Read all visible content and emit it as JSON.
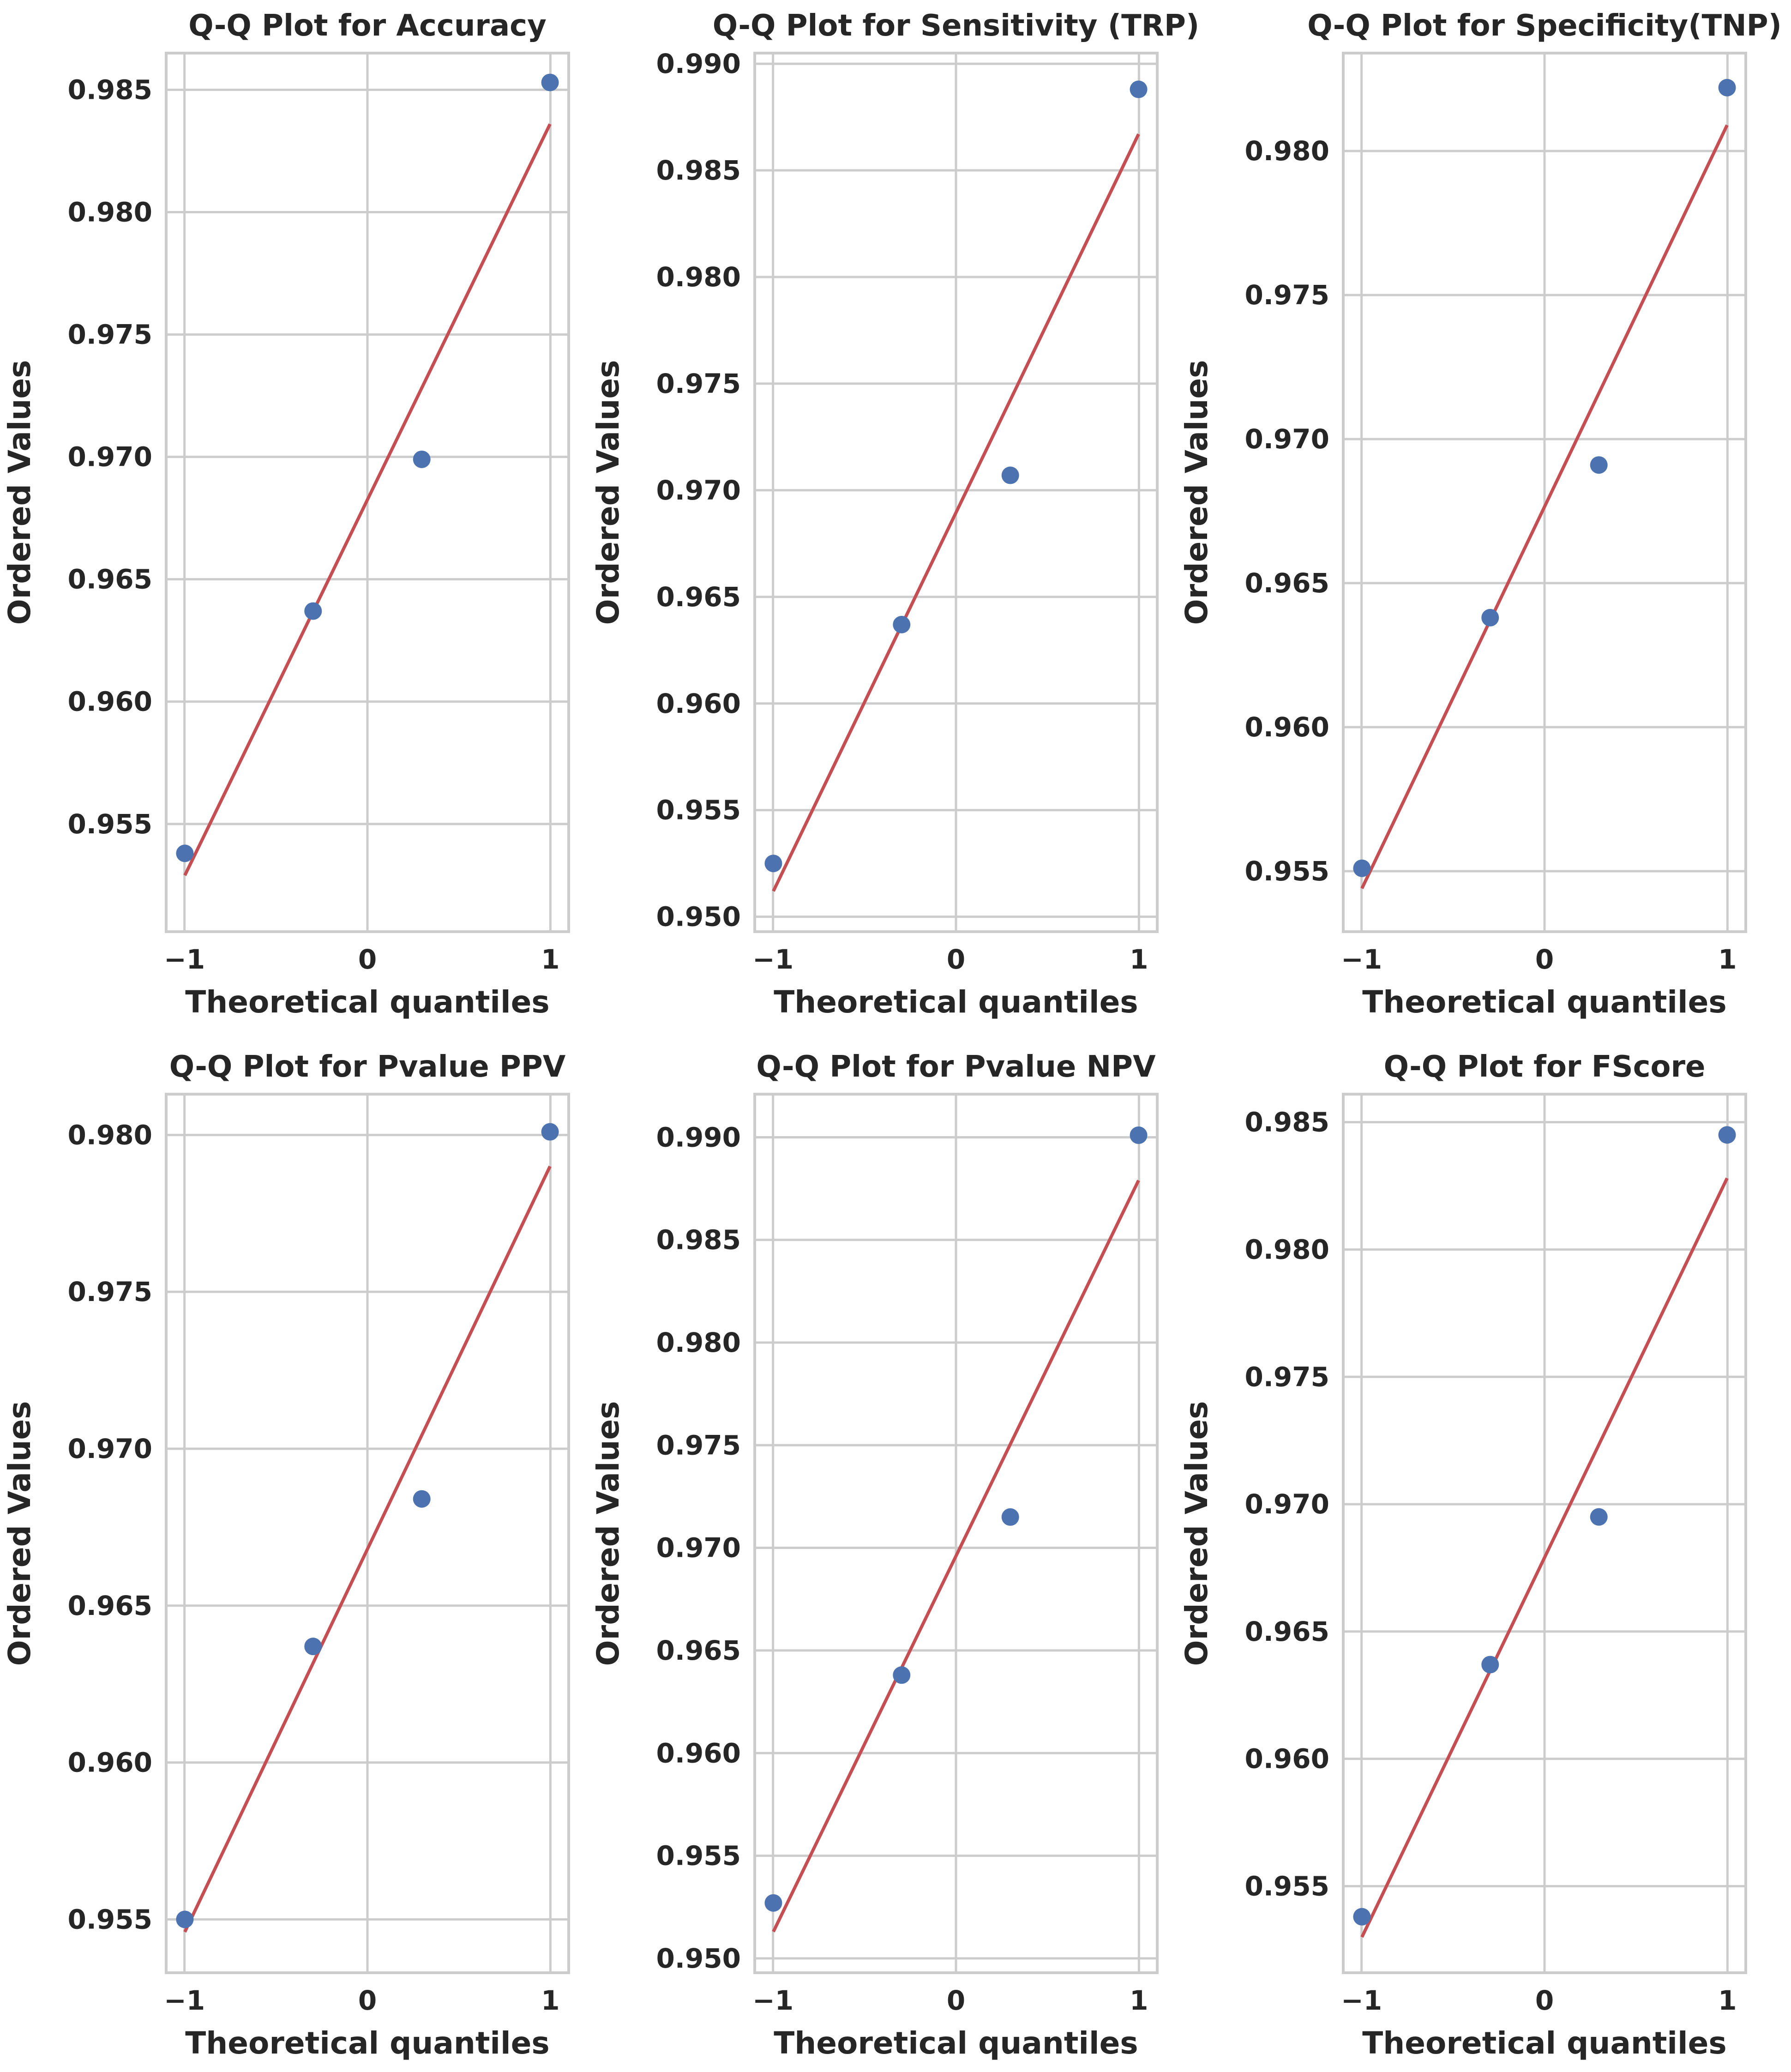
{
  "colors": {
    "points": "#4c72b0",
    "fit_line": "#c44e52",
    "grid": "#cccccc",
    "text": "#262626",
    "background": "#ffffff"
  },
  "chart_data": [
    {
      "type": "scatter",
      "title": "Q-Q Plot for Accuracy",
      "xlabel": "Theoretical quantiles",
      "ylabel": "Ordered Values",
      "grid": true,
      "xlim": [
        -1.1,
        1.1
      ],
      "ylim": [
        0.9506,
        0.9865
      ],
      "xticks": [
        -1,
        0,
        1
      ],
      "xtick_labels": [
        "−1",
        "0",
        "1"
      ],
      "yticks": [
        0.955,
        0.96,
        0.965,
        0.97,
        0.975,
        0.98,
        0.985
      ],
      "ytick_labels": [
        "0.955",
        "0.960",
        "0.965",
        "0.970",
        "0.975",
        "0.980",
        "0.985"
      ],
      "points": {
        "x": [
          -0.998,
          -0.297,
          0.297,
          0.998
        ],
        "y": [
          0.9538,
          0.9637,
          0.9699,
          0.9853
        ]
      },
      "fit_line": {
        "x": [
          -0.998,
          0.998
        ],
        "y": [
          0.9529,
          0.9836
        ]
      }
    },
    {
      "type": "scatter",
      "title": "Q-Q Plot for Sensitivity (TRP)",
      "xlabel": "Theoretical quantiles",
      "ylabel": "Ordered Values",
      "grid": true,
      "xlim": [
        -1.1,
        1.1
      ],
      "ylim": [
        0.9493,
        0.9905
      ],
      "xticks": [
        -1,
        0,
        1
      ],
      "xtick_labels": [
        "−1",
        "0",
        "1"
      ],
      "yticks": [
        0.95,
        0.955,
        0.96,
        0.965,
        0.97,
        0.975,
        0.98,
        0.985,
        0.99
      ],
      "ytick_labels": [
        "0.950",
        "0.955",
        "0.960",
        "0.965",
        "0.970",
        "0.975",
        "0.980",
        "0.985",
        "0.990"
      ],
      "points": {
        "x": [
          -0.998,
          -0.297,
          0.297,
          0.998
        ],
        "y": [
          0.9525,
          0.9637,
          0.9707,
          0.9888
        ]
      },
      "fit_line": {
        "x": [
          -0.998,
          0.998
        ],
        "y": [
          0.9512,
          0.9867
        ]
      }
    },
    {
      "type": "scatter",
      "title": "Q-Q Plot for Specificity(TNP)",
      "xlabel": "Theoretical quantiles",
      "ylabel": "Ordered Values",
      "grid": true,
      "xlim": [
        -1.1,
        1.1
      ],
      "ylim": [
        0.9529,
        0.9834
      ],
      "xticks": [
        -1,
        0,
        1
      ],
      "xtick_labels": [
        "−1",
        "0",
        "1"
      ],
      "yticks": [
        0.955,
        0.96,
        0.965,
        0.97,
        0.975,
        0.98
      ],
      "ytick_labels": [
        "0.955",
        "0.960",
        "0.965",
        "0.970",
        "0.975",
        "0.980"
      ],
      "points": {
        "x": [
          -0.998,
          -0.297,
          0.297,
          0.998
        ],
        "y": [
          0.9551,
          0.9638,
          0.9691,
          0.9822
        ]
      },
      "fit_line": {
        "x": [
          -0.998,
          0.998
        ],
        "y": [
          0.9544,
          0.9809
        ]
      }
    },
    {
      "type": "scatter",
      "title": "Q-Q Plot for Pvalue  PPV",
      "xlabel": "Theoretical quantiles",
      "ylabel": "Ordered Values",
      "grid": true,
      "xlim": [
        -1.1,
        1.1
      ],
      "ylim": [
        0.9533,
        0.9813
      ],
      "xticks": [
        -1,
        0,
        1
      ],
      "xtick_labels": [
        "−1",
        "0",
        "1"
      ],
      "yticks": [
        0.955,
        0.96,
        0.965,
        0.97,
        0.975,
        0.98
      ],
      "ytick_labels": [
        "0.955",
        "0.960",
        "0.965",
        "0.970",
        "0.975",
        "0.980"
      ],
      "points": {
        "x": [
          -0.998,
          -0.297,
          0.297,
          0.998
        ],
        "y": [
          0.955,
          0.9637,
          0.9684,
          0.9801
        ]
      },
      "fit_line": {
        "x": [
          -0.998,
          0.998
        ],
        "y": [
          0.9546,
          0.979
        ]
      }
    },
    {
      "type": "scatter",
      "title": "Q-Q Plot for Pvalue  NPV",
      "xlabel": "Theoretical quantiles",
      "ylabel": "Ordered Values",
      "grid": true,
      "xlim": [
        -1.1,
        1.1
      ],
      "ylim": [
        0.9493,
        0.9921
      ],
      "xticks": [
        -1,
        0,
        1
      ],
      "xtick_labels": [
        "−1",
        "0",
        "1"
      ],
      "yticks": [
        0.95,
        0.955,
        0.96,
        0.965,
        0.97,
        0.975,
        0.98,
        0.985,
        0.99
      ],
      "ytick_labels": [
        "0.950",
        "0.955",
        "0.960",
        "0.965",
        "0.970",
        "0.975",
        "0.980",
        "0.985",
        "0.990"
      ],
      "points": {
        "x": [
          -0.998,
          -0.297,
          0.297,
          0.998
        ],
        "y": [
          0.9527,
          0.9638,
          0.9715,
          0.9901
        ]
      },
      "fit_line": {
        "x": [
          -0.998,
          0.998
        ],
        "y": [
          0.9513,
          0.9879
        ]
      }
    },
    {
      "type": "scatter",
      "title": "Q-Q Plot for FScore",
      "xlabel": "Theoretical quantiles",
      "ylabel": "Ordered Values",
      "grid": true,
      "xlim": [
        -1.1,
        1.1
      ],
      "ylim": [
        0.9516,
        0.9861
      ],
      "xticks": [
        -1,
        0,
        1
      ],
      "xtick_labels": [
        "−1",
        "0",
        "1"
      ],
      "yticks": [
        0.955,
        0.96,
        0.965,
        0.97,
        0.975,
        0.98,
        0.985
      ],
      "ytick_labels": [
        "0.955",
        "0.960",
        "0.965",
        "0.970",
        "0.975",
        "0.980",
        "0.985"
      ],
      "points": {
        "x": [
          -0.998,
          -0.297,
          0.297,
          0.998
        ],
        "y": [
          0.9538,
          0.9637,
          0.9695,
          0.9845
        ]
      },
      "fit_line": {
        "x": [
          -0.998,
          0.998
        ],
        "y": [
          0.953,
          0.9828
        ]
      }
    }
  ]
}
